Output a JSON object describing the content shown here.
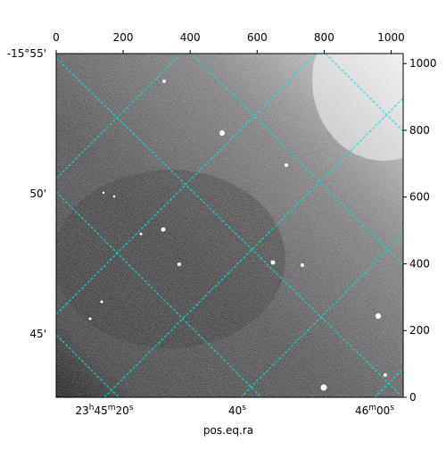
{
  "chart_data": {
    "type": "image",
    "xlabel": "pos.eq.ra",
    "xlim": [
      0,
      1036
    ],
    "xticks": [
      0,
      200,
      400,
      600,
      800,
      1000
    ],
    "ylim": [
      0,
      1030
    ],
    "yticks": [
      0,
      200,
      400,
      600,
      800,
      1000
    ],
    "dec_labels": [
      "-15°55'",
      "50'",
      "45'"
    ],
    "ra_labels": [
      "23h45m20s",
      "40s",
      "46m00s"
    ],
    "grid": true,
    "grid_color": "#00e5e5"
  }
}
